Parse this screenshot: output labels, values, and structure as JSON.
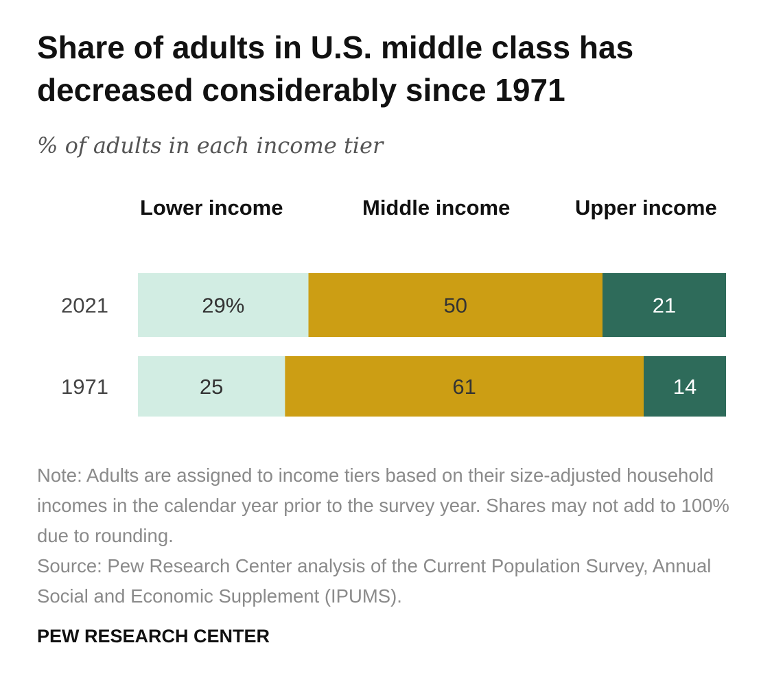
{
  "title": "Share of adults in U.S. middle class has decreased considerably since 1971",
  "subtitle": "% of adults in each income tier",
  "note": "Note: Adults are assigned to income tiers based on their size-adjusted household incomes in the calendar year prior to the survey year. Shares may not add to 100% due to rounding.",
  "source": "Source: Pew Research Center analysis of the Current Population Survey, Annual Social and Economic Supplement (IPUMS).",
  "brand": "PEW RESEARCH CENTER",
  "chart_data": {
    "type": "bar",
    "orientation": "horizontal",
    "stacked": true,
    "categories": [
      "2021",
      "1971"
    ],
    "series": [
      {
        "name": "Lower income",
        "values": [
          29,
          25
        ],
        "labels": [
          "29%",
          "25"
        ],
        "color": "#d2ede3",
        "label_color": "#333333"
      },
      {
        "name": "Middle income",
        "values": [
          50,
          61
        ],
        "labels": [
          "50",
          "61"
        ],
        "color": "#cc9e14",
        "label_color": "#333333"
      },
      {
        "name": "Upper income",
        "values": [
          21,
          14
        ],
        "labels": [
          "21",
          "14"
        ],
        "color": "#2e6b5a",
        "label_color": "#ffffff"
      }
    ],
    "xlim": [
      0,
      100
    ],
    "grid": false,
    "legend": "top"
  }
}
